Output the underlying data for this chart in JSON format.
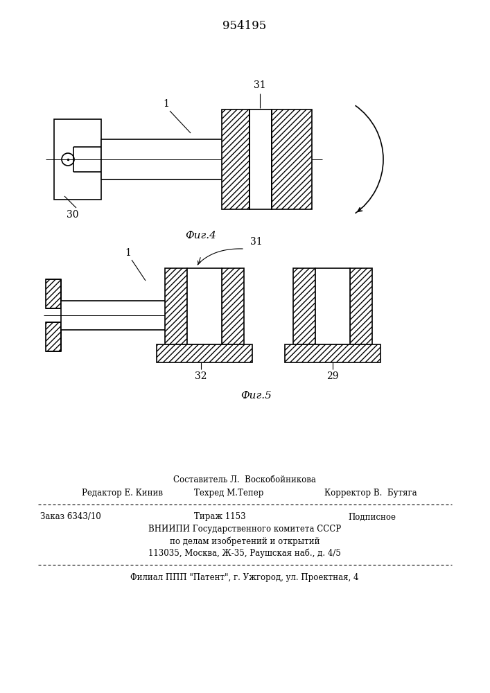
{
  "title": "954195",
  "fig4_label": "Фиг.4",
  "fig5_label": "Фиг.5",
  "label_1a": "1",
  "label_30": "30",
  "label_31a": "31",
  "label_1b": "1",
  "label_31b": "31",
  "label_32": "32",
  "label_29": "29",
  "text_sostavitel": "Составитель Л.  Воскобойникова",
  "text_redaktor": "Редактор Е. Кинив",
  "text_tehred": "Техред М.Тепер",
  "text_korrektor": "Корректор В.  Бутяга",
  "text_zakaz": "Заказ 6343/10",
  "text_tirazh": "Тираж 1153",
  "text_podpisnoe": "Подписное",
  "text_vniip": "ВНИИПИ Государственного комитета СССР",
  "text_podelamizobr": "по делам изобретений и открытий",
  "text_addr": "113035, Москва, Ж-35, Раушская наб., д. 4/5",
  "text_filial": "Филиал ППП \"Патент\", г. Ужгород, ул. Проектная, 4",
  "bg_color": "#ffffff",
  "line_color": "#000000",
  "line_width": 1.2
}
